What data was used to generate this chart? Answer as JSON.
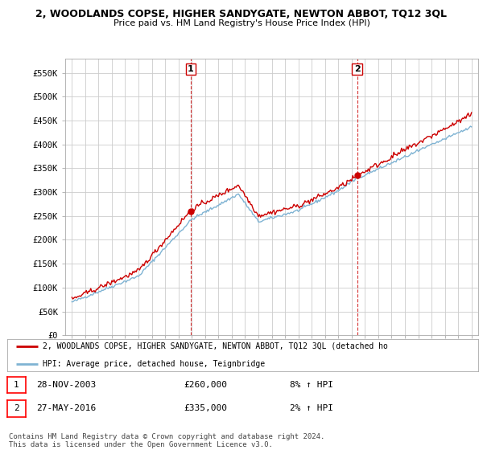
{
  "title_line1": "2, WOODLANDS COPSE, HIGHER SANDYGATE, NEWTON ABBOT, TQ12 3QL",
  "title_line2": "Price paid vs. HM Land Registry's House Price Index (HPI)",
  "ylim": [
    0,
    575000
  ],
  "yticks": [
    0,
    50000,
    100000,
    150000,
    200000,
    250000,
    300000,
    350000,
    400000,
    450000,
    500000,
    550000
  ],
  "ytick_labels": [
    "£0",
    "£50K",
    "£100K",
    "£150K",
    "£200K",
    "£250K",
    "£300K",
    "£350K",
    "£400K",
    "£450K",
    "£500K",
    "£550K"
  ],
  "sale1_year": 2003.91,
  "sale1_price": 260000,
  "sale2_year": 2016.41,
  "sale2_price": 335000,
  "sale1_date": "28-NOV-2003",
  "sale1_amount": "£260,000",
  "sale1_hpi": "8% ↑ HPI",
  "sale2_date": "27-MAY-2016",
  "sale2_amount": "£335,000",
  "sale2_hpi": "2% ↑ HPI",
  "legend_label1": "2, WOODLANDS COPSE, HIGHER SANDYGATE, NEWTON ABBOT, TQ12 3QL (detached ho",
  "legend_label2": "HPI: Average price, detached house, Teignbridge",
  "footer": "Contains HM Land Registry data © Crown copyright and database right 2024.\nThis data is licensed under the Open Government Licence v3.0.",
  "line_color_red": "#cc0000",
  "line_color_blue": "#7fb3d3",
  "background_color": "#ffffff",
  "grid_color": "#cccccc",
  "chart_bg": "#ffffff"
}
